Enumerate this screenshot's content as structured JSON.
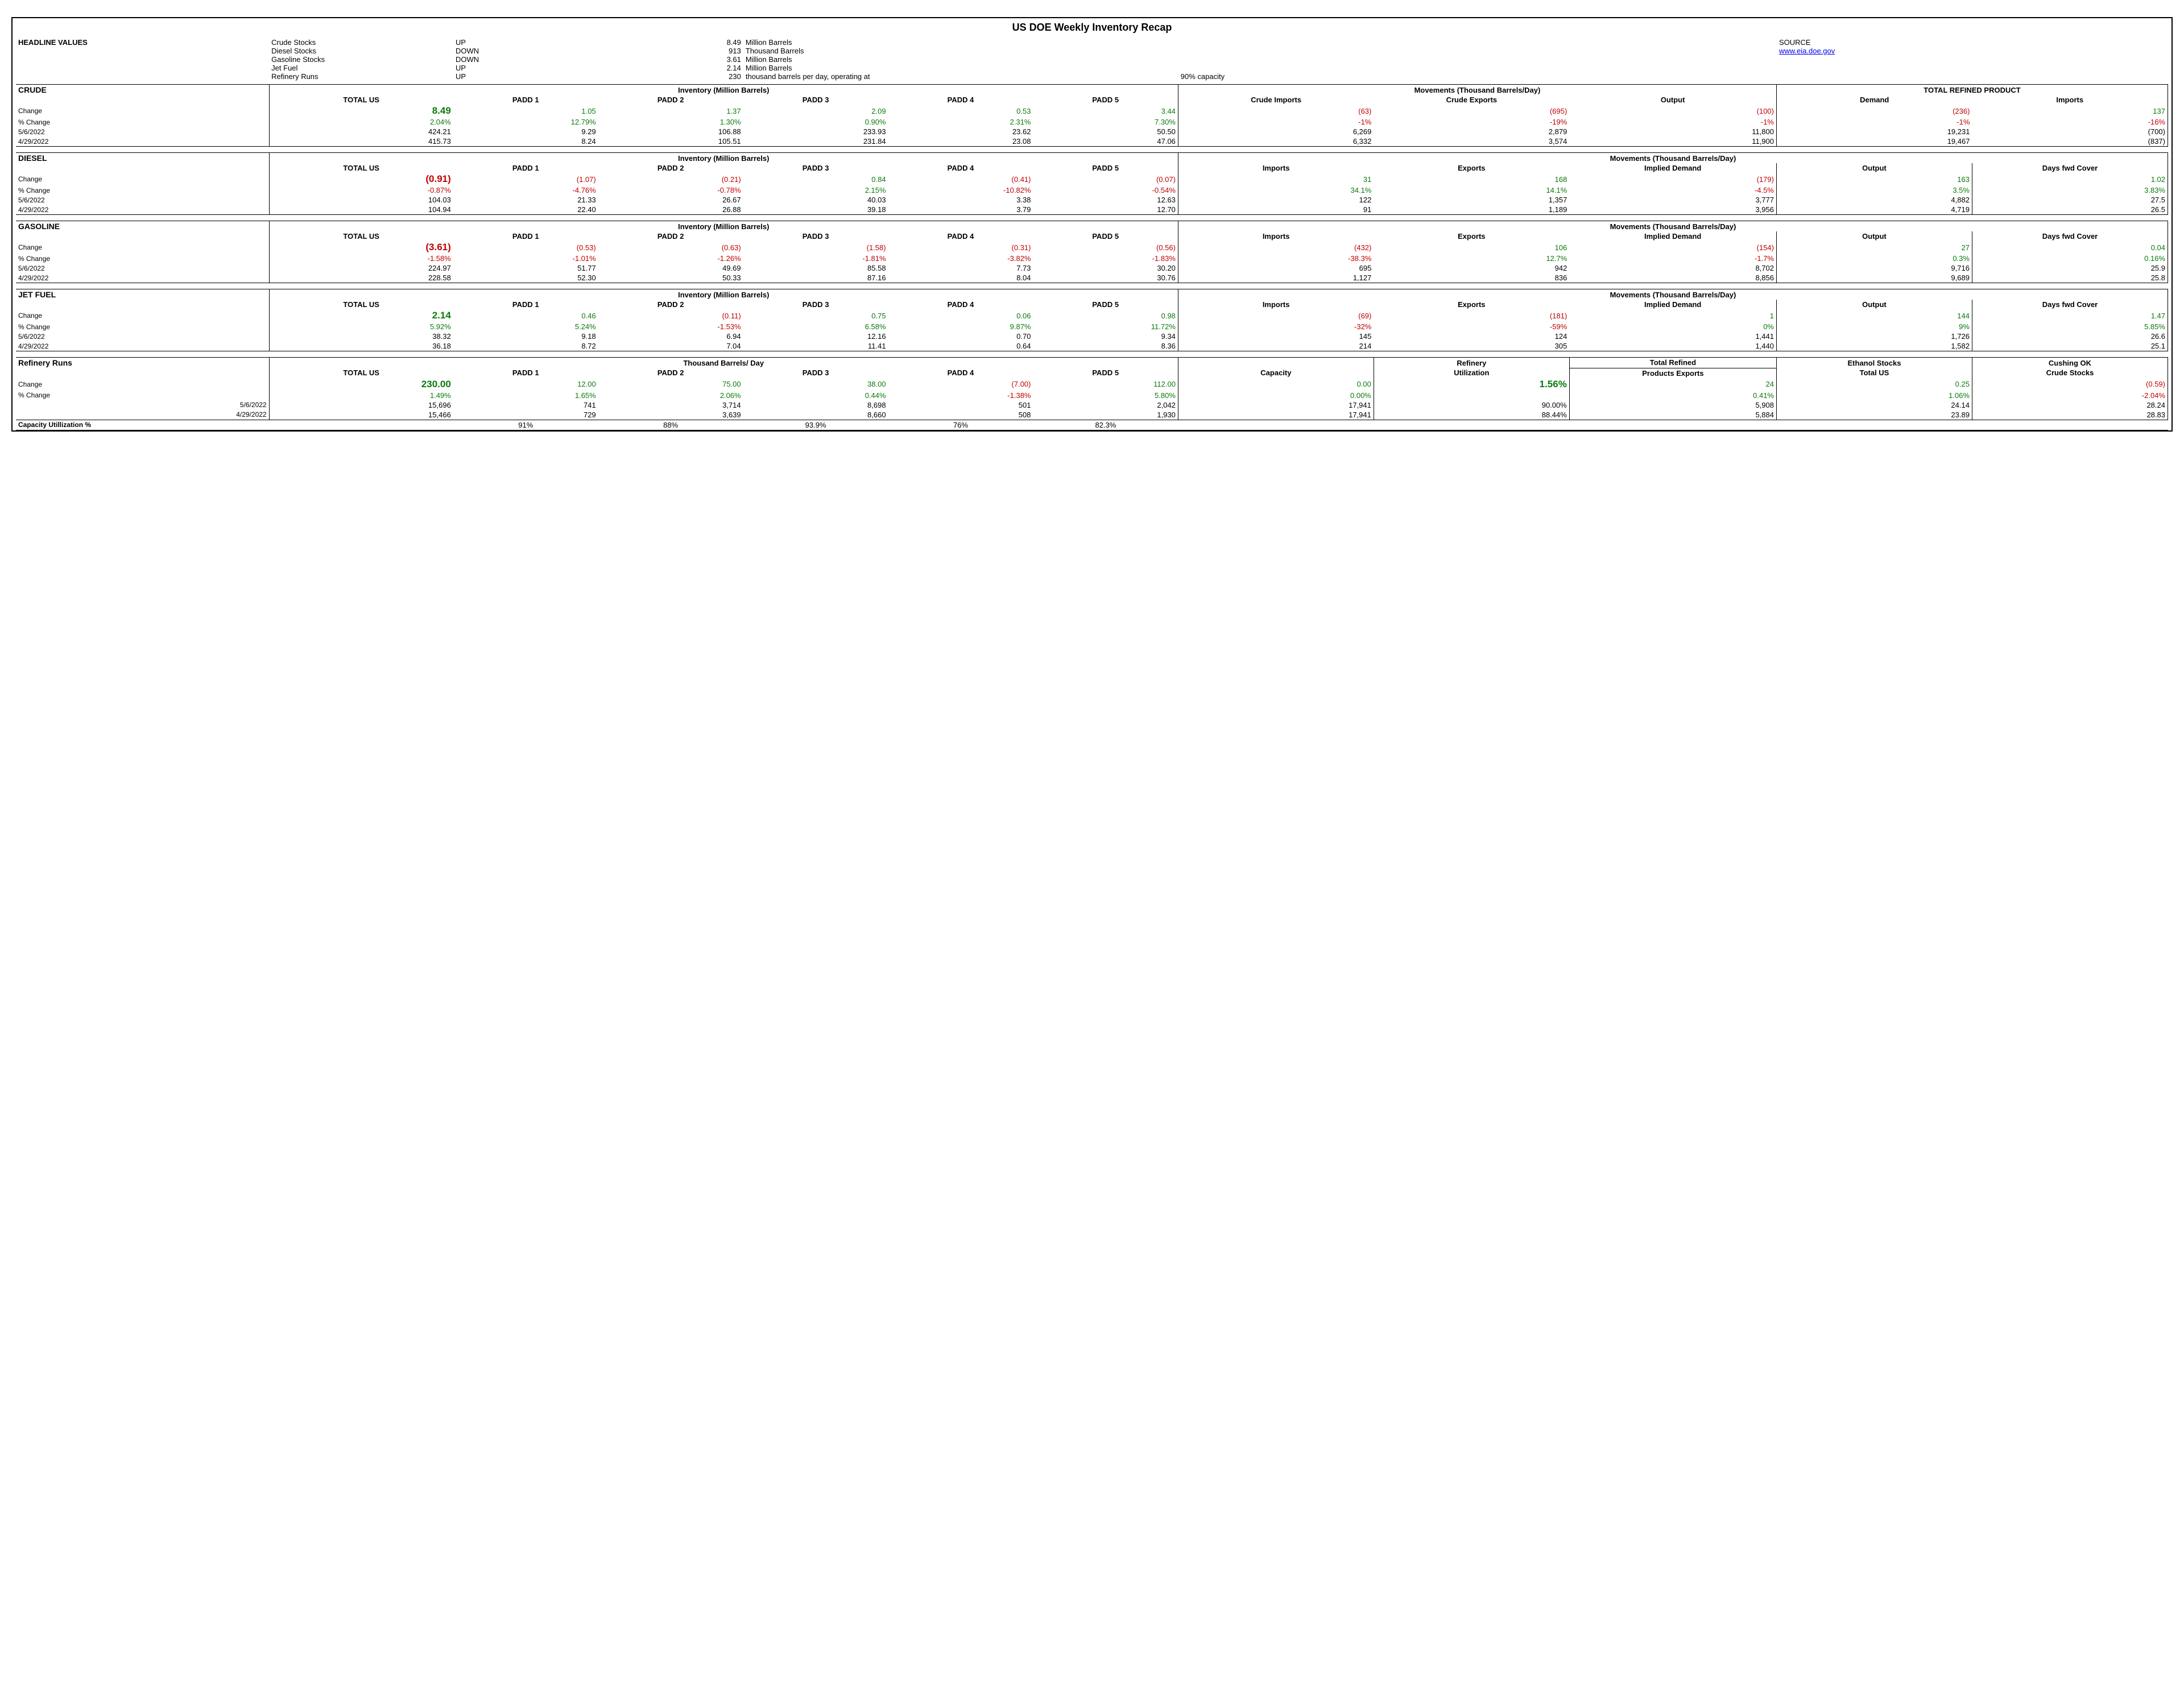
{
  "title": "US DOE Weekly Inventory Recap",
  "source": {
    "label": "SOURCE",
    "link_text": "www.eia.doe.gov"
  },
  "headline": {
    "label": "HEADLINE VALUES",
    "rows": [
      {
        "name": "Crude Stocks",
        "dir": "UP",
        "val": "8.49",
        "unit": "Million Barrels"
      },
      {
        "name": "Diesel Stocks",
        "dir": "DOWN",
        "val": "913",
        "unit": "Thousand Barrels"
      },
      {
        "name": "Gasoline Stocks",
        "dir": "DOWN",
        "val": "3.61",
        "unit": "Million Barrels"
      },
      {
        "name": "Jet Fuel",
        "dir": "UP",
        "val": "2.14",
        "unit": "Million Barrels"
      },
      {
        "name": "Refinery Runs",
        "dir": "UP",
        "val": "230",
        "unit": "thousand barrels per day, operating at",
        "cap": "90% capacity"
      }
    ]
  },
  "labels": {
    "total_us": "TOTAL US",
    "padd1": "PADD 1",
    "padd2": "PADD 2",
    "padd3": "PADD 3",
    "padd4": "PADD 4",
    "padd5": "PADD 5",
    "change": "Change",
    "pct_change": "% Change",
    "d1": "5/6/2022",
    "d2": "4/29/2022",
    "inv_hdr": "Inventory (Million Barrels)",
    "mov_hdr": "Movements (Thousand Barrels/Day)",
    "tbd_hdr": "Thousand Barrels/ Day"
  },
  "crude": {
    "section": "CRUDE",
    "right_group": "TOTAL REFINED PRODUCT",
    "mov_cols": [
      "Crude Imports",
      "Crude Exports",
      "Output"
    ],
    "right_cols": [
      "Demand",
      "Imports"
    ],
    "change": [
      "8.49",
      "1.05",
      "1.37",
      "2.09",
      "0.53",
      "3.44",
      "(63)",
      "(695)",
      "(100)",
      "(236)",
      "137"
    ],
    "pct": [
      "2.04%",
      "12.79%",
      "1.30%",
      "0.90%",
      "2.31%",
      "7.30%",
      "-1%",
      "-19%",
      "-1%",
      "-1%",
      "-16%"
    ],
    "d1": [
      "424.21",
      "9.29",
      "106.88",
      "233.93",
      "23.62",
      "50.50",
      "6,269",
      "2,879",
      "11,800",
      "19,231",
      "(700)"
    ],
    "d2": [
      "415.73",
      "8.24",
      "105.51",
      "231.84",
      "23.08",
      "47.06",
      "6,332",
      "3,574",
      "11,900",
      "19,467",
      "(837)"
    ],
    "sign_change": [
      "p",
      "p",
      "p",
      "p",
      "p",
      "p",
      "n",
      "n",
      "n",
      "n",
      "p"
    ],
    "sign_pct": [
      "p",
      "p",
      "p",
      "p",
      "p",
      "p",
      "n",
      "n",
      "n",
      "n",
      "n"
    ]
  },
  "diesel": {
    "section": "DIESEL",
    "mov_cols": [
      "Imports",
      "Exports",
      "Implied Demand",
      "Output",
      "Days fwd Cover"
    ],
    "change": [
      "(0.91)",
      "(1.07)",
      "(0.21)",
      "0.84",
      "(0.41)",
      "(0.07)",
      "31",
      "168",
      "(179)",
      "163",
      "1.02"
    ],
    "pct": [
      "-0.87%",
      "-4.76%",
      "-0.78%",
      "2.15%",
      "-10.82%",
      "-0.54%",
      "34.1%",
      "14.1%",
      "-4.5%",
      "3.5%",
      "3.83%"
    ],
    "d1": [
      "104.03",
      "21.33",
      "26.67",
      "40.03",
      "3.38",
      "12.63",
      "122",
      "1,357",
      "3,777",
      "4,882",
      "27.5"
    ],
    "d2": [
      "104.94",
      "22.40",
      "26.88",
      "39.18",
      "3.79",
      "12.70",
      "91",
      "1,189",
      "3,956",
      "4,719",
      "26.5"
    ],
    "sign_change": [
      "n",
      "n",
      "n",
      "p",
      "n",
      "n",
      "p",
      "p",
      "n",
      "p",
      "p"
    ],
    "sign_pct": [
      "n",
      "n",
      "n",
      "p",
      "n",
      "n",
      "p",
      "p",
      "n",
      "p",
      "p"
    ]
  },
  "gasoline": {
    "section": "GASOLINE",
    "mov_cols": [
      "Imports",
      "Exports",
      "Implied Demand",
      "Output",
      "Days fwd Cover"
    ],
    "change": [
      "(3.61)",
      "(0.53)",
      "(0.63)",
      "(1.58)",
      "(0.31)",
      "(0.56)",
      "(432)",
      "106",
      "(154)",
      "27",
      "0.04"
    ],
    "pct": [
      "-1.58%",
      "-1.01%",
      "-1.26%",
      "-1.81%",
      "-3.82%",
      "-1.83%",
      "-38.3%",
      "12.7%",
      "-1.7%",
      "0.3%",
      "0.16%"
    ],
    "d1": [
      "224.97",
      "51.77",
      "49.69",
      "85.58",
      "7.73",
      "30.20",
      "695",
      "942",
      "8,702",
      "9,716",
      "25.9"
    ],
    "d2": [
      "228.58",
      "52.30",
      "50.33",
      "87.16",
      "8.04",
      "30.76",
      "1,127",
      "836",
      "8,856",
      "9,689",
      "25.8"
    ],
    "sign_change": [
      "n",
      "n",
      "n",
      "n",
      "n",
      "n",
      "n",
      "p",
      "n",
      "p",
      "p"
    ],
    "sign_pct": [
      "n",
      "n",
      "n",
      "n",
      "n",
      "n",
      "n",
      "p",
      "n",
      "p",
      "p"
    ]
  },
  "jet": {
    "section": "JET FUEL",
    "mov_cols": [
      "Imports",
      "Exports",
      "Implied Demand",
      "Output",
      "Days fwd Cover"
    ],
    "change": [
      "2.14",
      "0.46",
      "(0.11)",
      "0.75",
      "0.06",
      "0.98",
      "(69)",
      "(181)",
      "1",
      "144",
      "1.47"
    ],
    "pct": [
      "5.92%",
      "5.24%",
      "-1.53%",
      "6.58%",
      "9.87%",
      "11.72%",
      "-32%",
      "-59%",
      "0%",
      "9%",
      "5.85%"
    ],
    "d1": [
      "38.32",
      "9.18",
      "6.94",
      "12.16",
      "0.70",
      "9.34",
      "145",
      "124",
      "1,441",
      "1,726",
      "26.6"
    ],
    "d2": [
      "36.18",
      "8.72",
      "7.04",
      "11.41",
      "0.64",
      "8.36",
      "214",
      "305",
      "1,440",
      "1,582",
      "25.1"
    ],
    "sign_change": [
      "p",
      "p",
      "n",
      "p",
      "p",
      "p",
      "n",
      "n",
      "p",
      "p",
      "p"
    ],
    "sign_pct": [
      "p",
      "p",
      "n",
      "p",
      "p",
      "p",
      "n",
      "n",
      "p",
      "p",
      "p"
    ]
  },
  "refinery": {
    "section": "Refinery Runs",
    "extra_cols": [
      "Capacity",
      "Refinery",
      "Total Refined",
      "Ethanol Stocks",
      "Cushing OK"
    ],
    "extra_cols2": [
      "",
      "Utilization",
      "Products Exports",
      "Total US",
      "Crude Stocks"
    ],
    "change": [
      "230.00",
      "12.00",
      "75.00",
      "38.00",
      "(7.00)",
      "112.00",
      "0.00",
      "1.56%",
      "24",
      "0.25",
      "(0.59)"
    ],
    "pct": [
      "1.49%",
      "1.65%",
      "2.06%",
      "0.44%",
      "-1.38%",
      "5.80%",
      "0.00%",
      "",
      "0.41%",
      "1.06%",
      "-2.04%"
    ],
    "d1": [
      "15,696",
      "741",
      "3,714",
      "8,698",
      "501",
      "2,042",
      "17,941",
      "90.00%",
      "5,908",
      "24.14",
      "28.24"
    ],
    "d2": [
      "15,466",
      "729",
      "3,639",
      "8,660",
      "508",
      "1,930",
      "17,941",
      "88.44%",
      "5,884",
      "23.89",
      "28.83"
    ],
    "sign_change": [
      "p",
      "p",
      "p",
      "p",
      "n",
      "p",
      "p",
      "p",
      "p",
      "p",
      "n"
    ],
    "sign_pct": [
      "p",
      "p",
      "p",
      "p",
      "n",
      "p",
      "p",
      "",
      "p",
      "p",
      "n"
    ],
    "caputil_label": "Capacity Utillization %",
    "caputil": [
      "",
      "91%",
      "88%",
      "93.9%",
      "76%",
      "82.3%",
      "",
      "",
      "",
      "",
      ""
    ]
  }
}
